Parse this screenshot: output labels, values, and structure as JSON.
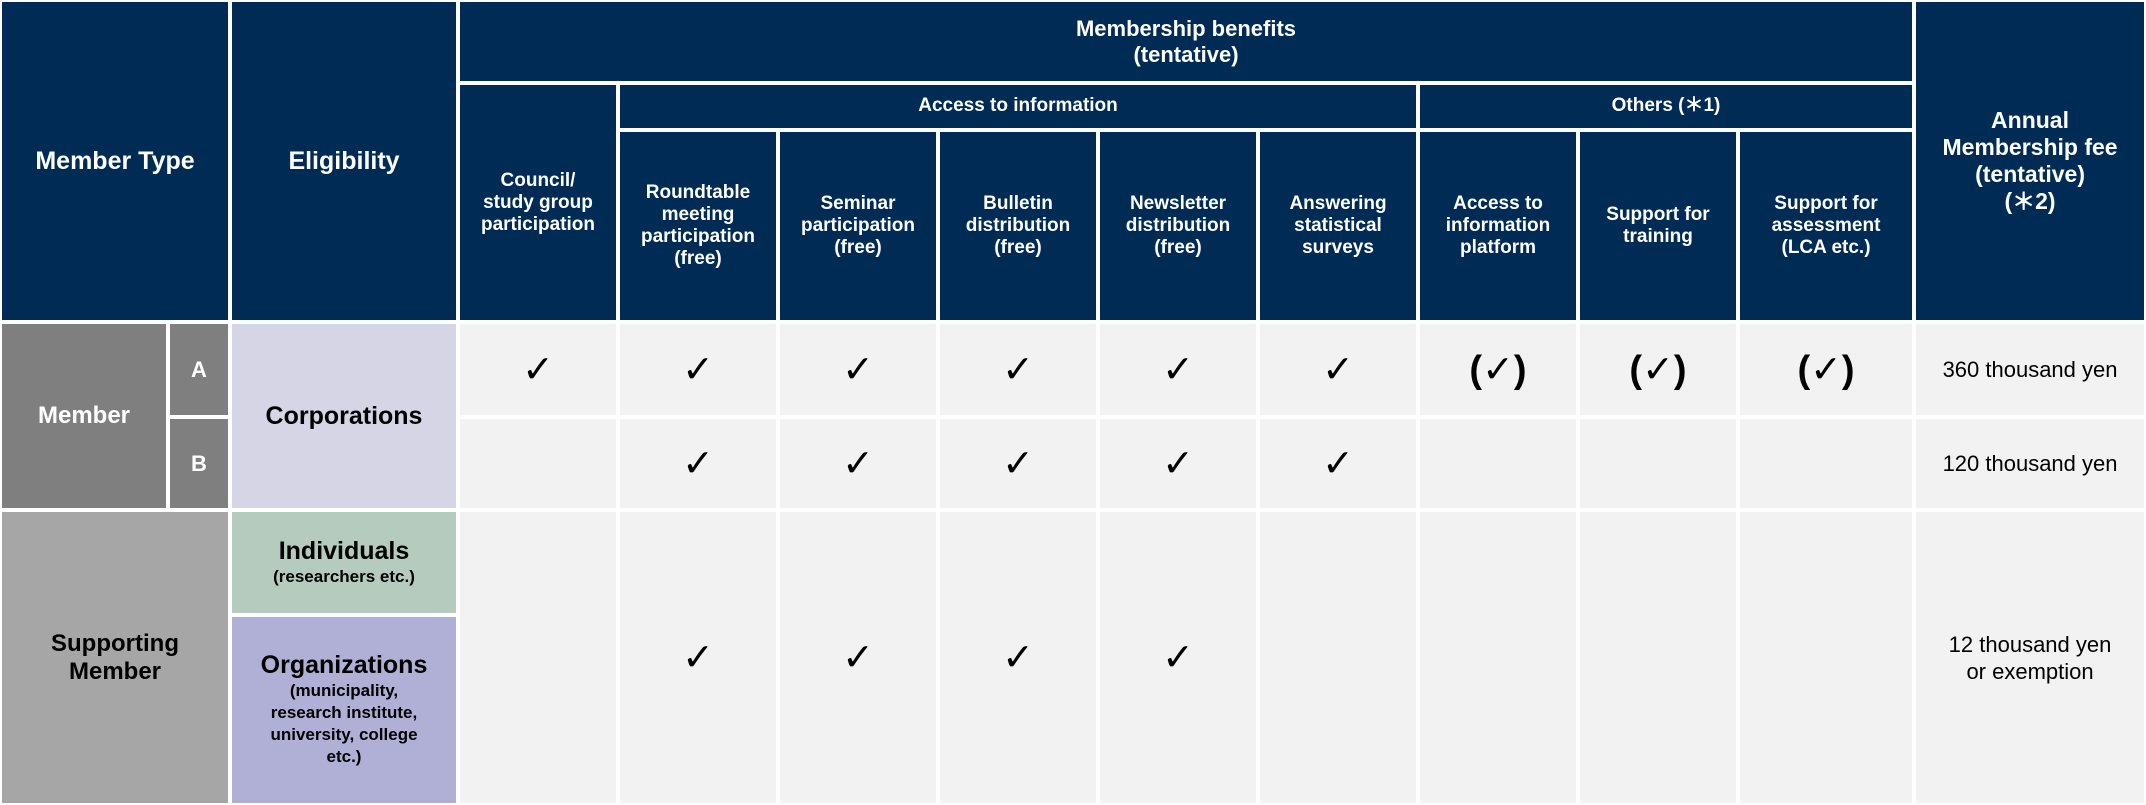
{
  "header": {
    "member_type": "Member Type",
    "eligibility": "Eligibility",
    "benefits_title": [
      "Membership benefits",
      "(tentative)"
    ],
    "group_access": "Access to information",
    "group_others": "Others (＊1)",
    "fee_title": [
      "Annual",
      "Membership fee",
      "(tentative)",
      "(＊2)"
    ],
    "columns": [
      [
        "Council/",
        "study group",
        "participation"
      ],
      [
        "Roundtable",
        "meeting",
        "participation",
        "(free)"
      ],
      [
        "Seminar",
        "participation",
        "(free)"
      ],
      [
        "Bulletin",
        "distribution",
        "(free)"
      ],
      [
        "Newsletter",
        "distribution",
        "(free)"
      ],
      [
        "Answering",
        "statistical",
        "surveys"
      ],
      [
        "Access to",
        "information",
        "platform"
      ],
      [
        "Support for",
        "training"
      ],
      [
        "Support for",
        "assessment",
        "(LCA etc.)"
      ]
    ]
  },
  "rows": {
    "member": {
      "label": "Member",
      "eligibility": "Corporations",
      "a": {
        "sub": "A",
        "cells": [
          "✓",
          "✓",
          "✓",
          "✓",
          "✓",
          "✓",
          "(✓)",
          "(✓)",
          "(✓)"
        ],
        "fee": [
          "360 thousand yen"
        ]
      },
      "b": {
        "sub": "B",
        "cells": [
          "",
          "✓",
          "✓",
          "✓",
          "✓",
          "✓",
          "",
          "",
          ""
        ],
        "fee": [
          "120 thousand yen"
        ]
      }
    },
    "supporting": {
      "label": [
        "Supporting",
        "Member"
      ],
      "individuals": {
        "main": "Individuals",
        "sub": [
          "(researchers etc.)"
        ]
      },
      "organizations": {
        "main": "Organizations",
        "sub": [
          "(municipality,",
          "research institute,",
          "university, college",
          "etc.)"
        ]
      },
      "cells": [
        "",
        "✓",
        "✓",
        "✓",
        "✓",
        "",
        "",
        "",
        ""
      ],
      "fee": [
        "12 thousand yen",
        "or exemption"
      ]
    }
  },
  "colors": {
    "header_bg": "#002b54",
    "member_bg": "#7f7f7f",
    "supporting_bg": "#a6a6a6",
    "corporations_bg": "#d6d5e6",
    "individuals_bg": "#b4cbbd",
    "organizations_bg": "#b0afd6",
    "cell_bg": "#f2f2f2"
  }
}
